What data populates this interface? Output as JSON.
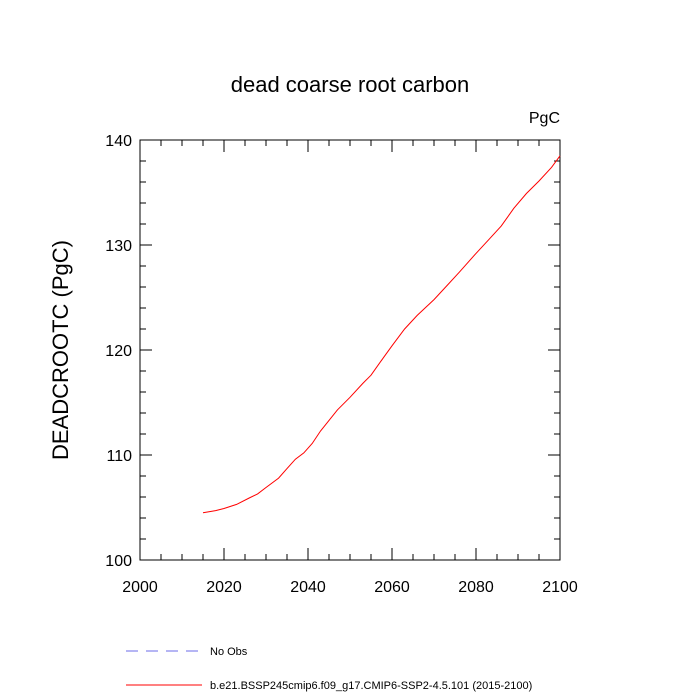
{
  "chart_data": {
    "type": "line",
    "title": "dead coarse root carbon",
    "units_label": "PgC",
    "xlabel": "",
    "ylabel": "DEADCROOTC  (PgC)",
    "xlim": [
      2000,
      2100
    ],
    "ylim": [
      100,
      140
    ],
    "x_major_ticks": [
      2000,
      2020,
      2040,
      2060,
      2080,
      2100
    ],
    "x_tick_labels": [
      "2000",
      "2020",
      "2040",
      "2060",
      "2080",
      "2100"
    ],
    "y_major_ticks": [
      100,
      110,
      120,
      130,
      140
    ],
    "y_tick_labels": [
      "100",
      "110",
      "120",
      "130",
      "140"
    ],
    "series": [
      {
        "name": "b.e21.BSSP245cmip6.f09_g17.CMIP6-SSP2-4.5.101 (2015-2100)",
        "color": "#ff0000",
        "style": "solid",
        "x": [
          2015,
          2018,
          2020,
          2023,
          2026,
          2028,
          2030,
          2033,
          2035,
          2037,
          2039,
          2041,
          2043,
          2045,
          2047,
          2050,
          2053,
          2055,
          2058,
          2060,
          2063,
          2066,
          2070,
          2073,
          2076,
          2080,
          2083,
          2086,
          2089,
          2092,
          2095,
          2098,
          2100
        ],
        "y": [
          104.5,
          104.7,
          104.9,
          105.3,
          105.9,
          106.3,
          106.9,
          107.8,
          108.7,
          109.6,
          110.2,
          111.1,
          112.3,
          113.3,
          114.3,
          115.5,
          116.8,
          117.6,
          119.3,
          120.4,
          122.0,
          123.3,
          124.8,
          126.1,
          127.4,
          129.2,
          130.5,
          131.8,
          133.5,
          134.9,
          136.1,
          137.4,
          138.5
        ]
      },
      {
        "name": "No Obs",
        "color": "#6b6bea",
        "style": "dashed",
        "x": [],
        "y": []
      }
    ],
    "legend_position": "bottom-left"
  }
}
